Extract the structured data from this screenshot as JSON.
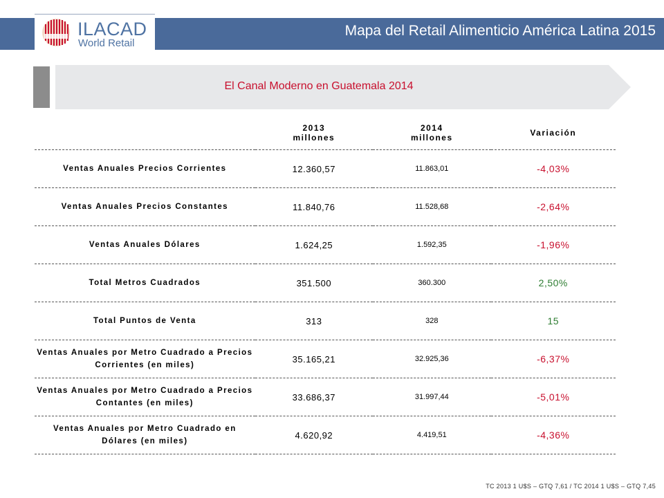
{
  "header": {
    "logo_name": "ILACAD",
    "logo_sub": "World Retail",
    "title": "Mapa del Retail Alimenticio América Latina 2015"
  },
  "section": {
    "title": "El Canal Moderno en Guatemala 2014"
  },
  "table": {
    "headers": {
      "col2013_line1": "2013",
      "col2013_line2": "millones",
      "col2014_line1": "2014",
      "col2014_line2": "millones",
      "variation": "Variación"
    },
    "rows": [
      {
        "label": "Ventas Anuales Precios Corrientes",
        "v2013": "12.360,57",
        "v2014": "11.863,01",
        "var": "-4,03%",
        "sign": "neg"
      },
      {
        "label": "Ventas Anuales Precios Constantes",
        "v2013": "11.840,76",
        "v2014": "11.528,68",
        "var": "-2,64%",
        "sign": "neg"
      },
      {
        "label": "Ventas Anuales Dólares",
        "v2013": "1.624,25",
        "v2014": "1.592,35",
        "var": "-1,96%",
        "sign": "neg"
      },
      {
        "label": "Total Metros Cuadrados",
        "v2013": "351.500",
        "v2014": "360.300",
        "var": "2,50%",
        "sign": "pos"
      },
      {
        "label": "Total Puntos de Venta",
        "v2013": "313",
        "v2014": "328",
        "var": "15",
        "sign": "pos"
      },
      {
        "label": "Ventas Anuales por Metro Cuadrado a Precios Corrientes (en miles)",
        "v2013": "35.165,21",
        "v2014": "32.925,36",
        "var": "-6,37%",
        "sign": "neg"
      },
      {
        "label": "Ventas Anuales por Metro Cuadrado a Precios Contantes (en miles)",
        "v2013": "33.686,37",
        "v2014": "31.997,44",
        "var": "-5,01%",
        "sign": "neg"
      },
      {
        "label": "Ventas Anuales por Metro Cuadrado en Dólares (en miles)",
        "v2013": "4.620,92",
        "v2014": "4.419,51",
        "var": "-4,36%",
        "sign": "neg"
      }
    ]
  },
  "footnote": "TC 2013 1 U$S – GTQ 7,61 / TC 2014 1 U$S – GTQ 7,45",
  "colors": {
    "header_band": "#4a6a9a",
    "negative": "#c8102e",
    "positive": "#2e7d32",
    "banner": "#e7e8ea"
  }
}
